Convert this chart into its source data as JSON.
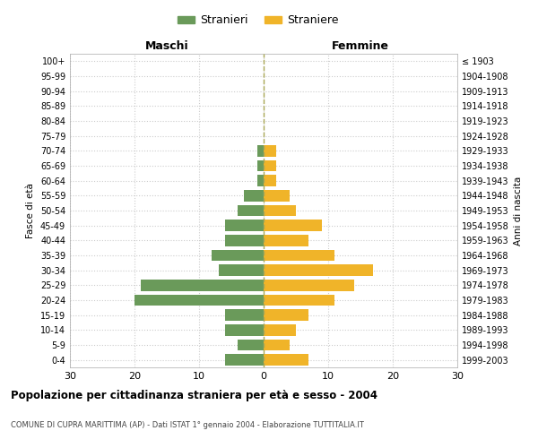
{
  "age_groups": [
    "0-4",
    "5-9",
    "10-14",
    "15-19",
    "20-24",
    "25-29",
    "30-34",
    "35-39",
    "40-44",
    "45-49",
    "50-54",
    "55-59",
    "60-64",
    "65-69",
    "70-74",
    "75-79",
    "80-84",
    "85-89",
    "90-94",
    "95-99",
    "100+"
  ],
  "birth_years": [
    "1999-2003",
    "1994-1998",
    "1989-1993",
    "1984-1988",
    "1979-1983",
    "1974-1978",
    "1969-1973",
    "1964-1968",
    "1959-1963",
    "1954-1958",
    "1949-1953",
    "1944-1948",
    "1939-1943",
    "1934-1938",
    "1929-1933",
    "1924-1928",
    "1919-1923",
    "1914-1918",
    "1909-1913",
    "1904-1908",
    "≤ 1903"
  ],
  "maschi": [
    6,
    4,
    6,
    6,
    20,
    19,
    7,
    8,
    6,
    6,
    4,
    3,
    1,
    1,
    1,
    0,
    0,
    0,
    0,
    0,
    0
  ],
  "femmine": [
    7,
    4,
    5,
    7,
    11,
    14,
    17,
    11,
    7,
    9,
    5,
    4,
    2,
    2,
    2,
    0,
    0,
    0,
    0,
    0,
    0
  ],
  "male_color": "#6a9a5a",
  "female_color": "#f0b429",
  "background_color": "#ffffff",
  "grid_color": "#cccccc",
  "title": "Popolazione per cittadinanza straniera per età e sesso - 2004",
  "subtitle": "COMUNE DI CUPRA MARITTIMA (AP) - Dati ISTAT 1° gennaio 2004 - Elaborazione TUTTITALIA.IT",
  "xlabel_left": "Maschi",
  "xlabel_right": "Femmine",
  "ylabel_left": "Fasce di età",
  "ylabel_right": "Anni di nascita",
  "legend_stranieri": "Stranieri",
  "legend_straniere": "Straniere",
  "xlim": 30,
  "bar_height": 0.75
}
